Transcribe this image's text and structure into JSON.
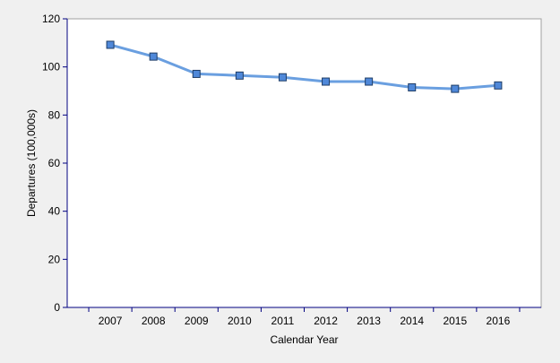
{
  "chart_data": {
    "type": "line",
    "title": "",
    "xlabel": "Calendar Year",
    "ylabel": "Departures (100,000s)",
    "categories": [
      "2007",
      "2008",
      "2009",
      "2010",
      "2011",
      "2012",
      "2013",
      "2014",
      "2015",
      "2016"
    ],
    "series": [
      {
        "values": [
          109.2,
          104.3,
          97.1,
          96.4,
          95.7,
          93.9,
          93.9,
          91.5,
          90.9,
          92.3
        ]
      }
    ],
    "ylim": [
      0,
      120
    ],
    "yticks": [
      "0",
      "20",
      "40",
      "60",
      "80",
      "100",
      "120"
    ],
    "grid": false,
    "legend": "none",
    "colors": {
      "background": "#f0f0f0",
      "plot_background": "#ffffff",
      "line": "#6a9fe0",
      "marker_fill": "#4f88d9",
      "marker_stroke": "#1f3d66",
      "axis": "#000080"
    }
  }
}
